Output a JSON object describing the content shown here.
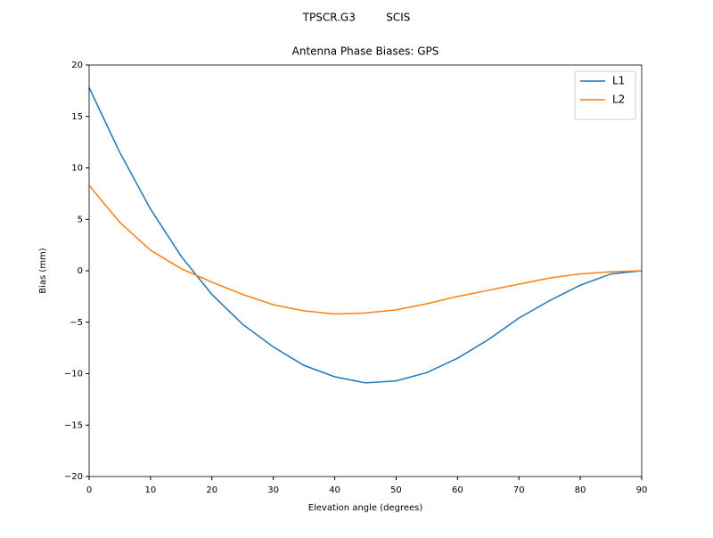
{
  "chart_data": {
    "type": "line",
    "suptitle": "TPSCR.G3         SCIS",
    "title": "Antenna Phase Biases: GPS",
    "xlabel": "Elevation angle (degrees)",
    "ylabel": "Bias (mm)",
    "x": [
      0,
      5,
      10,
      15,
      20,
      25,
      30,
      35,
      40,
      45,
      50,
      55,
      60,
      65,
      70,
      75,
      80,
      85,
      90
    ],
    "series": [
      {
        "name": "L1",
        "color": "#1f77b4",
        "values": [
          17.8,
          11.5,
          6.0,
          1.4,
          -2.3,
          -5.2,
          -7.4,
          -9.2,
          -10.3,
          -10.9,
          -10.7,
          -9.9,
          -8.5,
          -6.7,
          -4.6,
          -2.9,
          -1.4,
          -0.3,
          0
        ]
      },
      {
        "name": "L2",
        "color": "#ff7f0e",
        "values": [
          8.3,
          4.7,
          2.0,
          0.2,
          -1.1,
          -2.3,
          -3.3,
          -3.9,
          -4.2,
          -4.1,
          -3.8,
          -3.2,
          -2.5,
          -1.9,
          -1.3,
          -0.7,
          -0.3,
          -0.1,
          0
        ]
      }
    ],
    "xlim": [
      0,
      90
    ],
    "ylim": [
      -20,
      20
    ],
    "xticks": [
      0,
      10,
      20,
      30,
      40,
      50,
      60,
      70,
      80,
      90
    ],
    "yticks": [
      {
        "value": -20,
        "label": "−20"
      },
      {
        "value": -15,
        "label": "−15"
      },
      {
        "value": -10,
        "label": "−10"
      },
      {
        "value": -5,
        "label": "−5"
      },
      0,
      5,
      10,
      15,
      20
    ],
    "legend": "upper right",
    "grid": false
  }
}
